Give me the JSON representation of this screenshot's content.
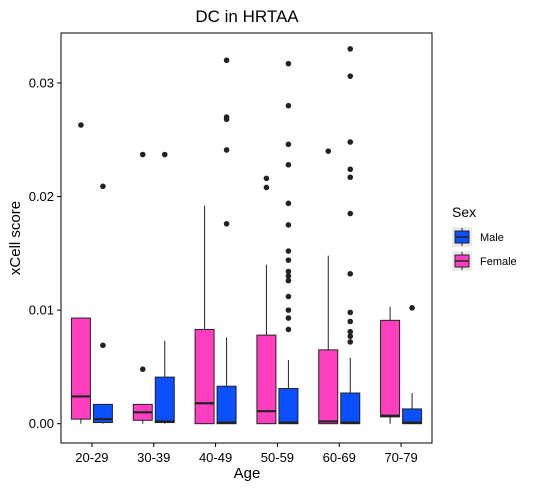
{
  "chart_data": {
    "type": "boxplot",
    "title": "DC in HRTAA",
    "xlabel": "Age",
    "ylabel": "xCell score",
    "ylim": [
      -0.0017,
      0.0344
    ],
    "yticks": [
      0,
      0.01,
      0.02,
      0.03
    ],
    "ytick_labels": [
      "0.00",
      "0.01",
      "0.02",
      "0.03"
    ],
    "categories": [
      "20-29",
      "30-39",
      "40-49",
      "50-59",
      "60-69",
      "70-79"
    ],
    "grid": false,
    "legend": {
      "title": "Sex",
      "position": "right",
      "entries": [
        "Male",
        "Female"
      ]
    },
    "colors": {
      "Female": "#ff3fbf",
      "Male": "#0a50ff"
    },
    "series": [
      {
        "name": "Female",
        "boxes": [
          {
            "min": 0.0,
            "q1": 0.0004,
            "median": 0.0024,
            "q3": 0.0093,
            "max": 0.0093,
            "outliers": [
              0.0263
            ]
          },
          {
            "min": 0.0,
            "q1": 0.0003,
            "median": 0.001,
            "q3": 0.0017,
            "max": 0.0017,
            "outliers": [
              0.0048,
              0.0237
            ]
          },
          {
            "min": 0.0,
            "q1": 0.0,
            "median": 0.0018,
            "q3": 0.0083,
            "max": 0.0192,
            "outliers": []
          },
          {
            "min": 0.0,
            "q1": 0.0,
            "median": 0.0011,
            "q3": 0.0078,
            "max": 0.014,
            "outliers": [
              0.0208,
              0.0216
            ]
          },
          {
            "min": 0.0,
            "q1": 0.0,
            "median": 0.0002,
            "q3": 0.0065,
            "max": 0.0148,
            "outliers": [
              0.024
            ]
          },
          {
            "min": 0.0,
            "q1": 0.0006,
            "median": 0.0007,
            "q3": 0.0091,
            "max": 0.0103,
            "outliers": []
          }
        ]
      },
      {
        "name": "Male",
        "boxes": [
          {
            "min": 0.0,
            "q1": 0.0001,
            "median": 0.0004,
            "q3": 0.0017,
            "max": 0.0017,
            "outliers": [
              0.0069,
              0.0209
            ]
          },
          {
            "min": 0.0,
            "q1": 0.0001,
            "median": 0.0002,
            "q3": 0.0041,
            "max": 0.0073,
            "outliers": [
              0.0237
            ]
          },
          {
            "min": 0.0,
            "q1": 0.0,
            "median": 0.0001,
            "q3": 0.0033,
            "max": 0.0076,
            "outliers": [
              0.0176,
              0.0241,
              0.0268,
              0.027,
              0.032
            ]
          },
          {
            "min": 0.0,
            "q1": 0.0,
            "median": 0.0001,
            "q3": 0.0031,
            "max": 0.0056,
            "outliers": [
              0.0083,
              0.0093,
              0.01,
              0.0112,
              0.0126,
              0.013,
              0.0134,
              0.0144,
              0.0152,
              0.0175,
              0.0194,
              0.0228,
              0.0246,
              0.028,
              0.0317
            ]
          },
          {
            "min": 0.0,
            "q1": 0.0,
            "median": 0.0001,
            "q3": 0.0027,
            "max": 0.0058,
            "outliers": [
              0.0072,
              0.0077,
              0.0081,
              0.009,
              0.0098,
              0.0132,
              0.0185,
              0.0217,
              0.0224,
              0.0248,
              0.0306,
              0.033
            ]
          },
          {
            "min": 0.0,
            "q1": 0.0,
            "median": 0.0001,
            "q3": 0.0013,
            "max": 0.0027,
            "outliers": [
              0.0102
            ]
          }
        ]
      }
    ]
  }
}
